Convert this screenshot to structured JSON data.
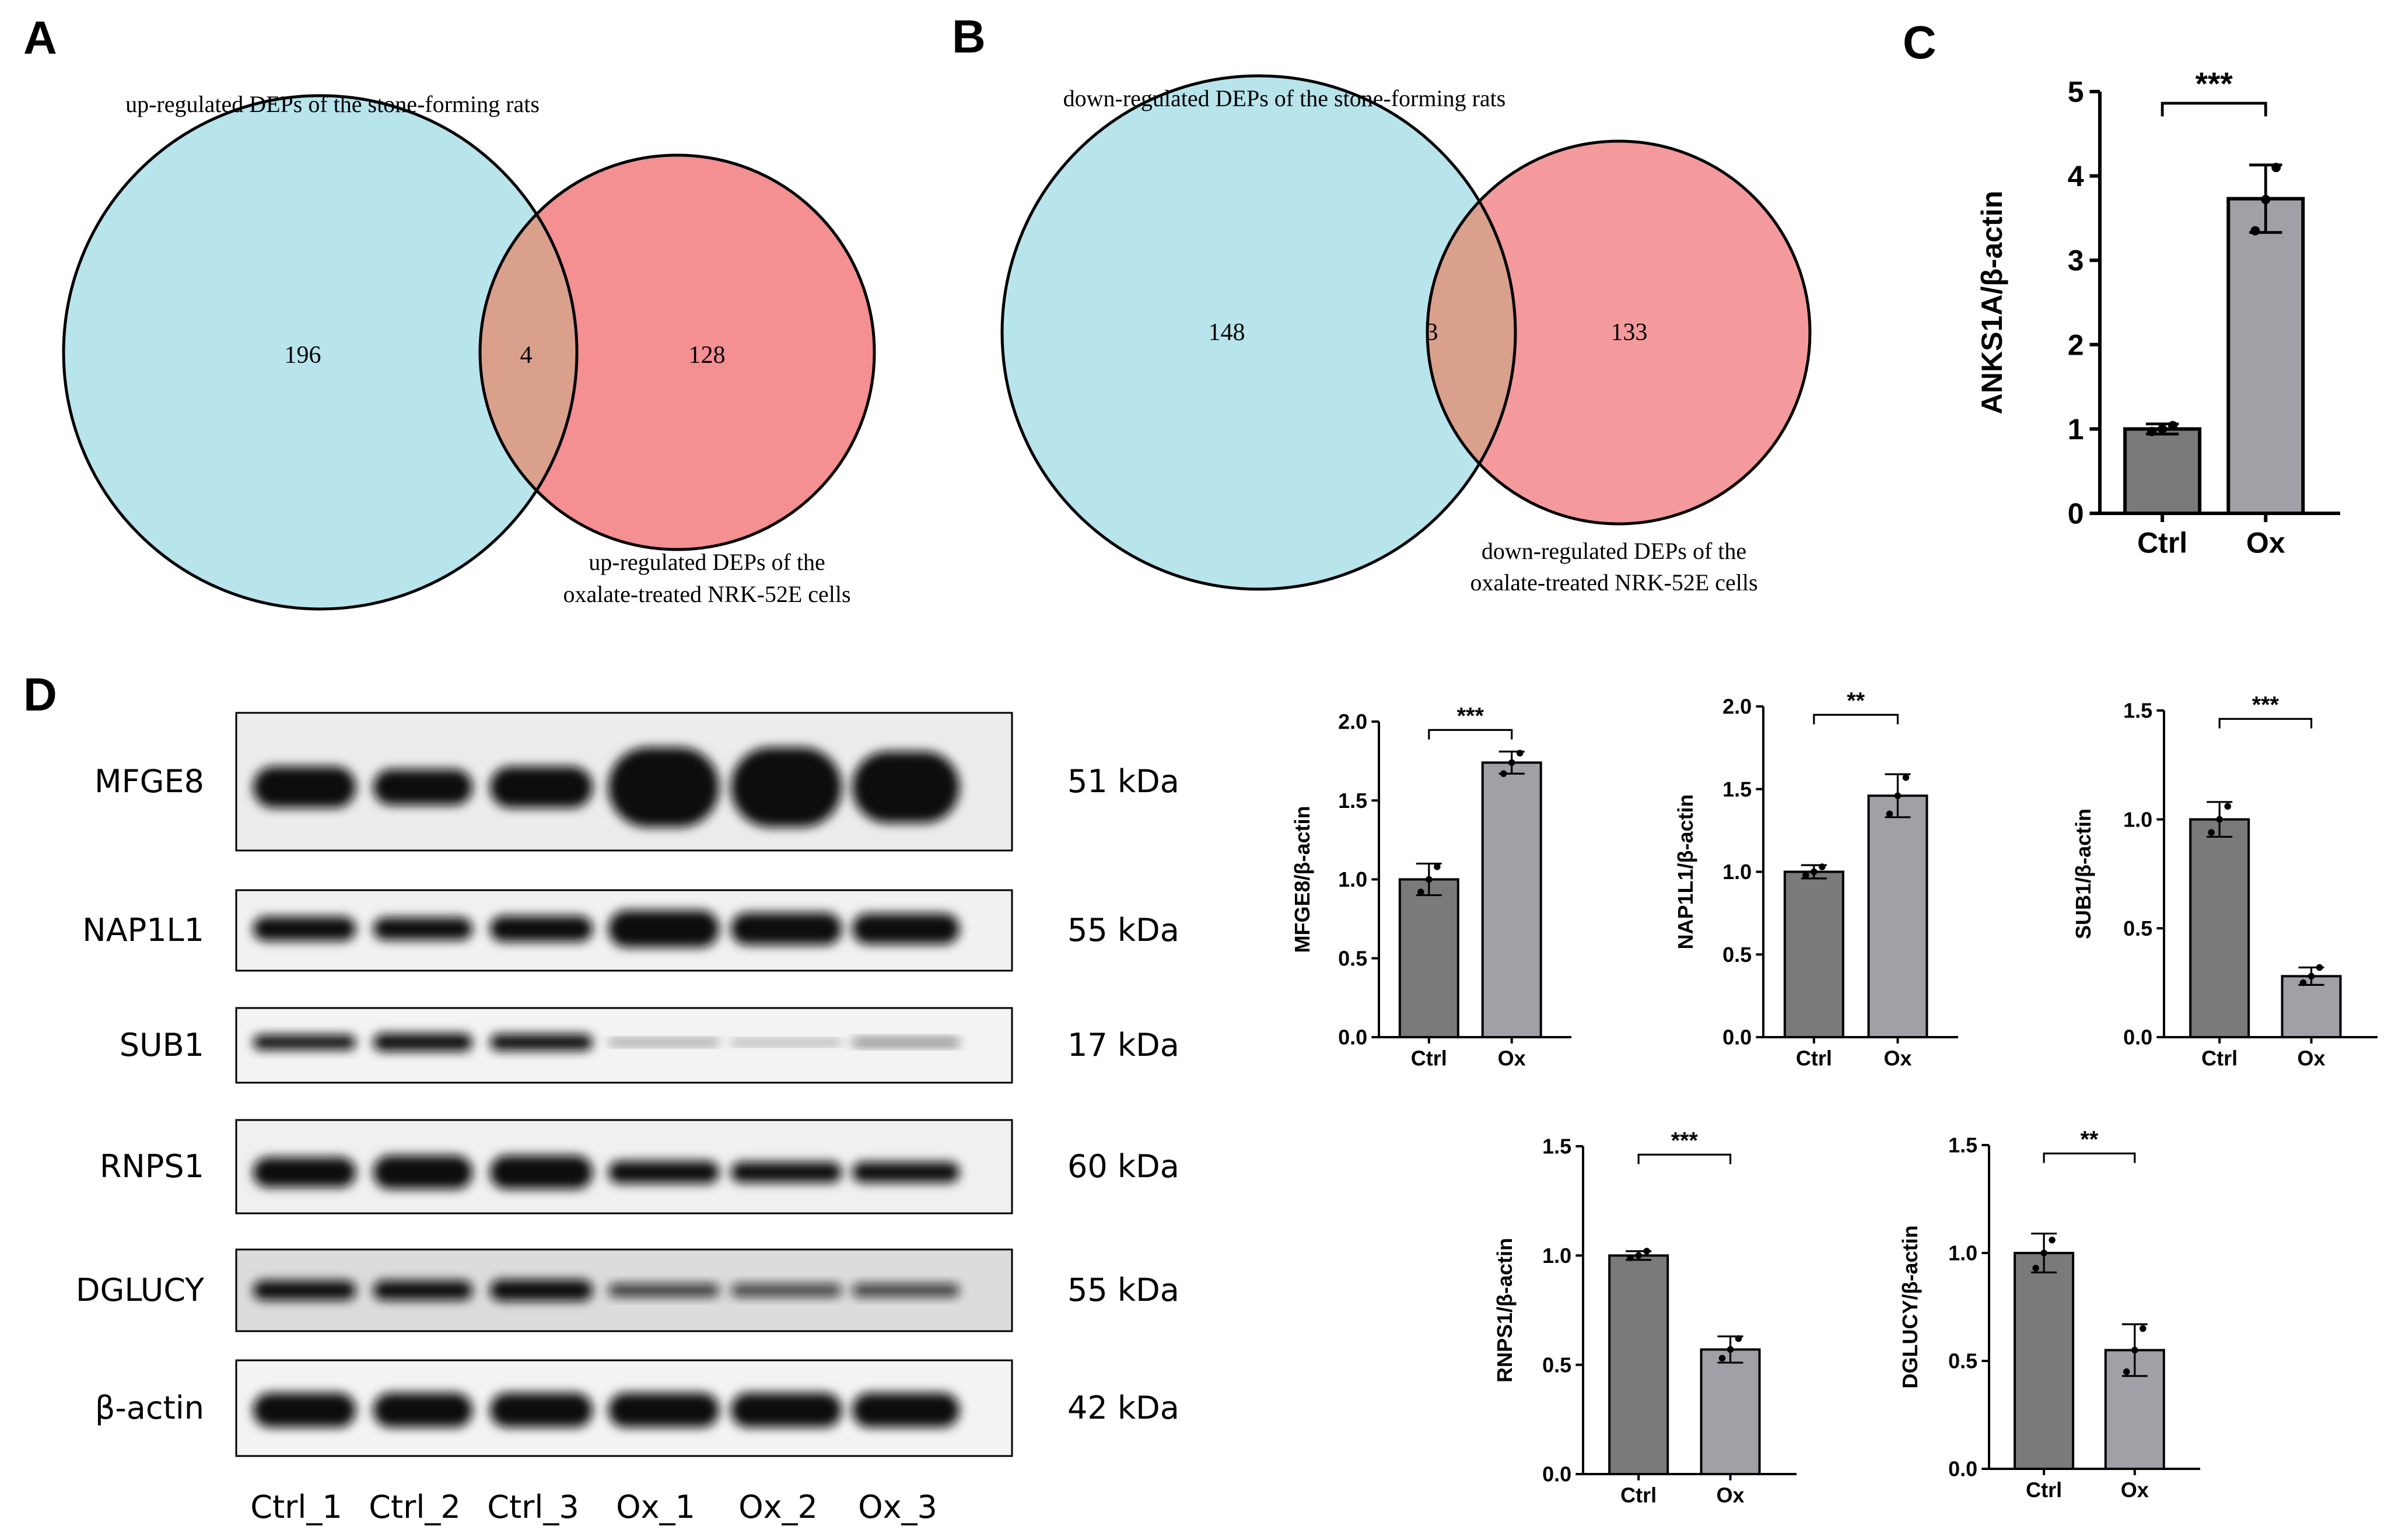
{
  "panels": {
    "A": {
      "letter": "A",
      "left_label": "up-regulated DEPs of the stone-forming rats",
      "right_label_line1": "up-regulated DEPs of the",
      "right_label_line2": "oxalate-treated NRK-52E cells",
      "left_only": "196",
      "overlap": "4",
      "right_only": "128"
    },
    "B": {
      "letter": "B",
      "left_label": "down-regulated DEPs of the stone-forming rats",
      "right_label_line1": "down-regulated DEPs of the",
      "right_label_line2": "oxalate-treated NRK-52E cells",
      "left_only": "148",
      "overlap": "3",
      "right_only": "133"
    },
    "C": {
      "letter": "C"
    },
    "D": {
      "letter": "D",
      "lanes": [
        "Ctrl_1",
        "Ctrl_2",
        "Ctrl_3",
        "Ox_1",
        "Ox_2",
        "Ox_3"
      ],
      "blots": [
        {
          "protein": "MFGE8",
          "kda": "51 kDa"
        },
        {
          "protein": "NAP1L1",
          "kda": "55 kDa"
        },
        {
          "protein": "SUB1",
          "kda": "17 kDa"
        },
        {
          "protein": "RNPS1",
          "kda": "60 kDa"
        },
        {
          "protein": "DGLUCY",
          "kda": "55 kDa"
        },
        {
          "protein": "β-actin",
          "kda": "42 kDa"
        }
      ]
    }
  },
  "colors": {
    "venn_left": "#b8e4ec",
    "venn_right": "#f48f92",
    "venn_overlap": "#d9a08c",
    "bar_ctrl": "#7a7a7a",
    "bar_ox": "#a0a0a6"
  },
  "chart_data": [
    {
      "id": "C",
      "type": "bar",
      "categories": [
        "Ctrl",
        "Ox"
      ],
      "values": [
        1.0,
        3.73
      ],
      "errors": [
        0.06,
        0.4
      ],
      "points": [
        [
          0.97,
          1.0,
          1.04
        ],
        [
          3.35,
          3.72,
          4.1
        ]
      ],
      "ylabel": "ANKS1A/β-actin",
      "ylim": [
        0,
        5
      ],
      "yticks": [
        "0",
        "1",
        "2",
        "3",
        "4",
        "5"
      ],
      "significance": "***"
    },
    {
      "id": "MFGE8",
      "type": "bar",
      "categories": [
        "Ctrl",
        "Ox"
      ],
      "values": [
        1.0,
        1.74
      ],
      "errors": [
        0.1,
        0.07
      ],
      "points": [
        [
          0.92,
          1.0,
          1.08
        ],
        [
          1.67,
          1.74,
          1.8
        ]
      ],
      "ylabel": "MFGE8/β-actin",
      "ylim": [
        0,
        2.0
      ],
      "yticks": [
        "0.0",
        "0.5",
        "1.0",
        "1.5",
        "2.0"
      ],
      "significance": "***"
    },
    {
      "id": "NAP1L1",
      "type": "bar",
      "categories": [
        "Ctrl",
        "Ox"
      ],
      "values": [
        1.0,
        1.46
      ],
      "errors": [
        0.04,
        0.13
      ],
      "points": [
        [
          0.98,
          1.0,
          1.03
        ],
        [
          1.35,
          1.46,
          1.57
        ]
      ],
      "ylabel": "NAP1L1/β-actin",
      "ylim": [
        0,
        2.0
      ],
      "yticks": [
        "0.0",
        "0.5",
        "1.0",
        "1.5",
        "2.0"
      ],
      "significance": "**"
    },
    {
      "id": "SUB1",
      "type": "bar",
      "categories": [
        "Ctrl",
        "Ox"
      ],
      "values": [
        1.0,
        0.28
      ],
      "errors": [
        0.08,
        0.04
      ],
      "points": [
        [
          0.94,
          1.0,
          1.06
        ],
        [
          0.25,
          0.28,
          0.32
        ]
      ],
      "ylabel": "SUB1/β-actin",
      "ylim": [
        0,
        1.5
      ],
      "yticks": [
        "0.0",
        "0.5",
        "1.0",
        "1.5"
      ],
      "significance": "***"
    },
    {
      "id": "RNPS1",
      "type": "bar",
      "categories": [
        "Ctrl",
        "Ox"
      ],
      "values": [
        1.0,
        0.57
      ],
      "errors": [
        0.02,
        0.06
      ],
      "points": [
        [
          0.99,
          1.0,
          1.02
        ],
        [
          0.53,
          0.57,
          0.62
        ]
      ],
      "ylabel": "RNPS1/β-actin",
      "ylim": [
        0,
        1.5
      ],
      "yticks": [
        "0.0",
        "0.5",
        "1.0",
        "1.5"
      ],
      "significance": "***"
    },
    {
      "id": "DGLUCY",
      "type": "bar",
      "categories": [
        "Ctrl",
        "Ox"
      ],
      "values": [
        1.0,
        0.55
      ],
      "errors": [
        0.09,
        0.12
      ],
      "points": [
        [
          0.93,
          1.0,
          1.06
        ],
        [
          0.45,
          0.55,
          0.65
        ]
      ],
      "ylabel": "DGLUCY/β-actin",
      "ylim": [
        0,
        1.5
      ],
      "yticks": [
        "0.0",
        "0.5",
        "1.0",
        "1.5"
      ],
      "significance": "**"
    }
  ]
}
